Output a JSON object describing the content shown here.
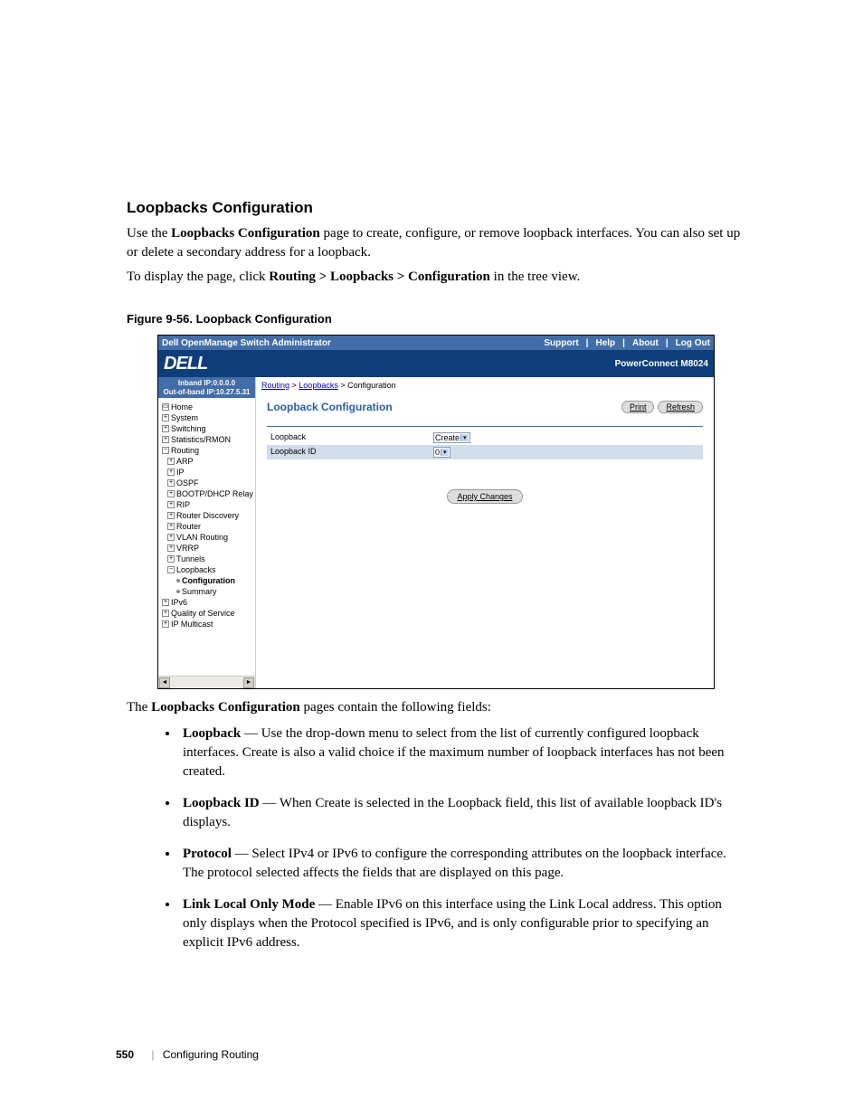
{
  "heading": "Loopbacks Configuration",
  "intro1_pre": "Use the ",
  "intro1_bold": "Loopbacks Configuration",
  "intro1_post": " page to create, configure, or remove loopback interfaces. You can also set up or delete a secondary address for a loopback.",
  "intro2_pre": "To display the page, click ",
  "intro2_bold": "Routing > Loopbacks > Configuration",
  "intro2_post": " in the tree view.",
  "figure_caption": "Figure 9-56.    Loopback Configuration",
  "screenshot": {
    "app_title": "Dell OpenManage Switch Administrator",
    "top_links": {
      "support": "Support",
      "help": "Help",
      "about": "About",
      "logout": "Log Out"
    },
    "logo_text": "DELL",
    "model": "PowerConnect M8024",
    "ip_inband": "Inband IP:0.0.0.0",
    "ip_outband": "Out-of-band IP:10.27.5.31",
    "tree": {
      "home": "Home",
      "system": "System",
      "switching": "Switching",
      "stats": "Statistics/RMON",
      "routing": "Routing",
      "arp": "ARP",
      "ip": "IP",
      "ospf": "OSPF",
      "bootp": "BOOTP/DHCP Relay Ag",
      "rip": "RIP",
      "routerdisc": "Router Discovery",
      "router": "Router",
      "vlanrouting": "VLAN Routing",
      "vrrp": "VRRP",
      "tunnels": "Tunnels",
      "loopbacks": "Loopbacks",
      "configuration": "Configuration",
      "summary": "Summary",
      "ipv6": "IPv6",
      "qos": "Quality of Service",
      "ipmulti": "IP Multicast"
    },
    "breadcrumb": {
      "a": "Routing",
      "b": "Loopbacks",
      "c": "Configuration"
    },
    "panel_title": "Loopback Configuration",
    "btn_print": "Print",
    "btn_refresh": "Refresh",
    "row_loopback_label": "Loopback",
    "row_loopback_value": "Create",
    "row_loopbackid_label": "Loopback ID",
    "row_loopbackid_value": "0",
    "btn_apply": "Apply Changes"
  },
  "after_text_pre": "The ",
  "after_text_bold": "Loopbacks Configuration",
  "after_text_post": " pages contain the following fields:",
  "fields": [
    {
      "term": "Loopback",
      "desc": " — Use the drop-down menu to select from the list of currently configured loopback interfaces. Create is also a valid choice if the maximum number of loopback interfaces has not been created."
    },
    {
      "term": "Loopback ID",
      "desc": " — When Create is selected in the Loopback field, this list of available loopback ID's displays."
    },
    {
      "term": "Protocol",
      "desc": " — Select IPv4 or IPv6 to configure the corresponding attributes on the loopback interface. The protocol selected affects the fields that are displayed on this page."
    },
    {
      "term": "Link Local Only Mode",
      "desc": " — Enable IPv6 on this interface using the Link Local address. This option only displays when the Protocol specified is IPv6, and is only configurable prior to specifying an explicit IPv6 address."
    }
  ],
  "footer": {
    "page": "550",
    "chapter": "Configuring Routing"
  }
}
